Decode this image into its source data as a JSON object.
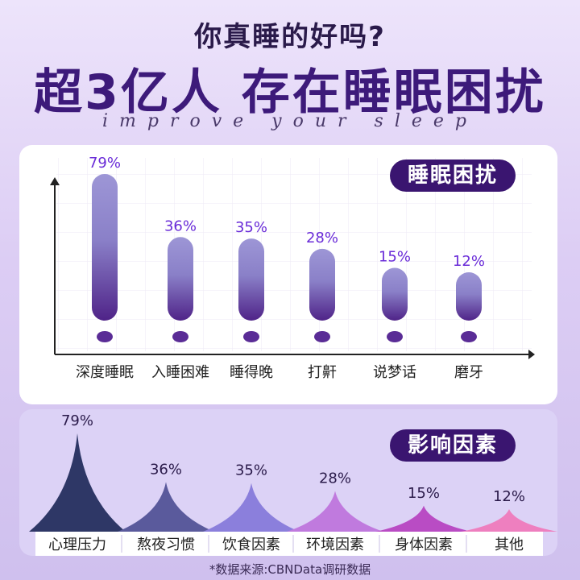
{
  "header": {
    "title_top": "你真睡的好吗?",
    "title_main": "超3亿人 存在睡眠困扰",
    "tagline": "improve your sleep"
  },
  "footer": {
    "source": "*数据来源:CBNData调研数据"
  },
  "chart_data": [
    {
      "type": "bar",
      "title": "睡眠困扰",
      "categories": [
        "深度睡眠",
        "入睡困难",
        "睡得晚",
        "打鼾",
        "说梦话",
        "磨牙"
      ],
      "values": [
        79,
        36,
        35,
        28,
        15,
        12
      ],
      "value_labels": [
        "79%",
        "36%",
        "35%",
        "28%",
        "15%",
        "12%"
      ],
      "unit": "%",
      "xlabel": "",
      "ylabel": "",
      "colors": [
        "#9b93d4",
        "#5a2c96"
      ]
    },
    {
      "type": "area",
      "title": "影响因素",
      "categories": [
        "心理压力",
        "熬夜习惯",
        "饮食因素",
        "环境因素",
        "身体因素",
        "其他"
      ],
      "values": [
        79,
        36,
        35,
        28,
        15,
        12
      ],
      "value_labels": [
        "79%",
        "36%",
        "35%",
        "28%",
        "15%",
        "12%"
      ],
      "unit": "%",
      "xlabel": "",
      "ylabel": "",
      "colors": [
        "#2e3766",
        "#5a5a9c",
        "#8b7fdc",
        "#c07ade",
        "#b94cc4",
        "#ee7fbf"
      ]
    }
  ]
}
